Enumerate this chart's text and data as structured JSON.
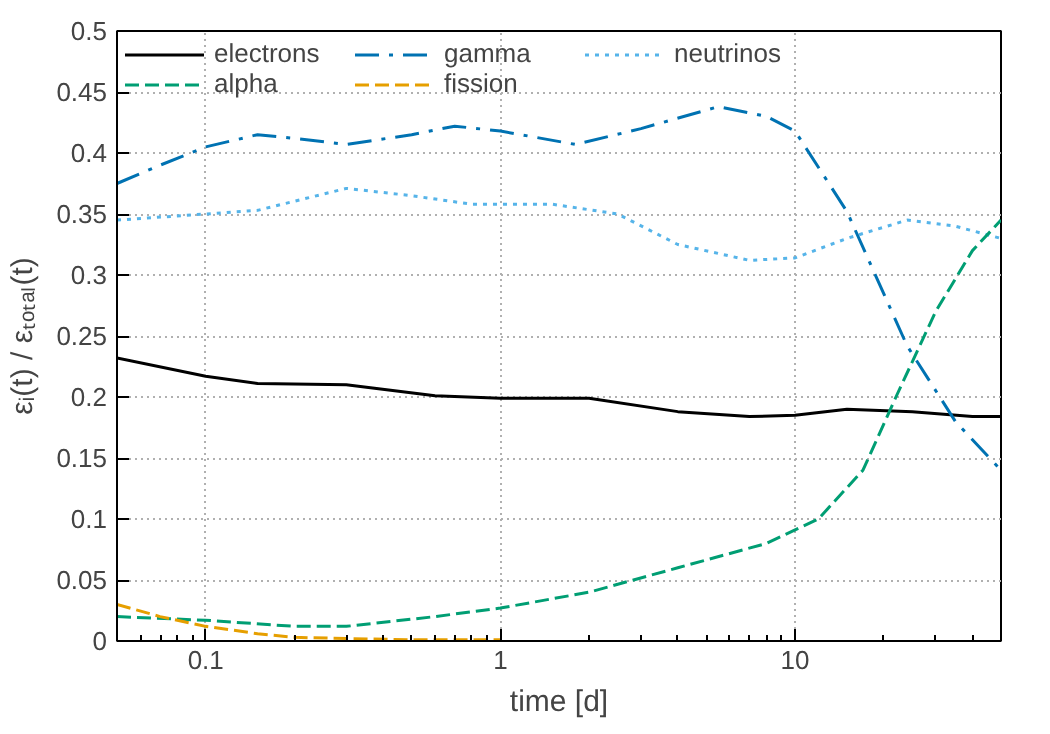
{
  "chart_data": {
    "type": "line",
    "xlabel": "time [d]",
    "ylabel": "εᵢ(t) / εₜₒₜₐₗ(t)",
    "log": "x",
    "grid": true,
    "legend": "top",
    "xlim": [
      0.05,
      50
    ],
    "xticks": [
      0.1,
      1,
      10
    ],
    "ylim": [
      0,
      0.5
    ],
    "yticks": [
      0,
      0.05,
      0.1,
      0.15,
      0.2,
      0.25,
      0.3,
      0.35,
      0.4,
      0.45,
      0.5
    ],
    "series": [
      {
        "name": "electrons",
        "color": "#000000",
        "line_style": "solid",
        "x": [
          0.05,
          0.1,
          0.15,
          0.3,
          0.6,
          1,
          2,
          4,
          7,
          10,
          15,
          25,
          40,
          50
        ],
        "values": [
          0.232,
          0.217,
          0.211,
          0.21,
          0.201,
          0.199,
          0.199,
          0.188,
          0.184,
          0.185,
          0.19,
          0.188,
          0.184,
          0.184
        ]
      },
      {
        "name": "gamma",
        "color": "#0072b2",
        "line_style": "dashdot",
        "x": [
          0.05,
          0.07,
          0.1,
          0.15,
          0.2,
          0.3,
          0.5,
          0.7,
          1,
          1.8,
          3,
          5.5,
          8,
          10,
          15,
          24,
          35,
          50
        ],
        "values": [
          0.375,
          0.39,
          0.405,
          0.415,
          0.412,
          0.407,
          0.415,
          0.422,
          0.418,
          0.407,
          0.42,
          0.438,
          0.43,
          0.418,
          0.352,
          0.242,
          0.18,
          0.14
        ]
      },
      {
        "name": "neutrinos",
        "color": "#56b4e9",
        "line_style": "dotted",
        "x": [
          0.05,
          0.1,
          0.15,
          0.3,
          0.5,
          0.8,
          1.5,
          2.5,
          4,
          7,
          10,
          15,
          24,
          35,
          50
        ],
        "values": [
          0.345,
          0.35,
          0.353,
          0.371,
          0.365,
          0.358,
          0.358,
          0.35,
          0.325,
          0.312,
          0.314,
          0.33,
          0.345,
          0.34,
          0.33
        ]
      },
      {
        "name": "alpha",
        "color": "#009e73",
        "line_style": "dashed",
        "x": [
          0.05,
          0.1,
          0.2,
          0.3,
          0.6,
          1,
          2,
          4,
          8,
          12,
          17,
          22,
          30,
          40,
          50
        ],
        "values": [
          0.02,
          0.017,
          0.012,
          0.012,
          0.02,
          0.027,
          0.04,
          0.06,
          0.08,
          0.1,
          0.14,
          0.2,
          0.27,
          0.32,
          0.345
        ]
      },
      {
        "name": "fission",
        "color": "#e69f00",
        "line_style": "dashed",
        "x": [
          0.05,
          0.07,
          0.1,
          0.15,
          0.2,
          0.3,
          0.5,
          1
        ],
        "values": [
          0.03,
          0.02,
          0.012,
          0.006,
          0.003,
          0.002,
          0.001,
          0.001
        ]
      }
    ]
  }
}
